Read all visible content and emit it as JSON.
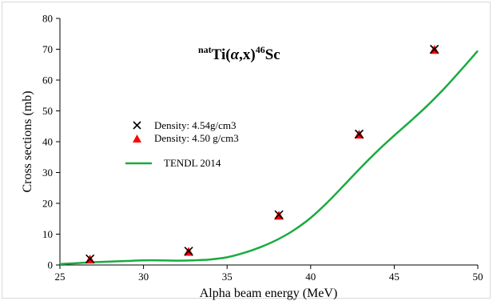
{
  "chart_data": {
    "type": "scatter",
    "title": {
      "pre_sup": "nat",
      "main": "Ti(",
      "alpha": "α",
      "mid": ",x)",
      "post_sup": "46",
      "tail": "Sc"
    },
    "xlabel": "Alpha beam energy (MeV)",
    "ylabel": "Cross sections (mb)",
    "xlim": [
      25,
      50
    ],
    "ylim": [
      0,
      80
    ],
    "xticks": [
      "25",
      "30",
      "35",
      "40",
      "45",
      "50"
    ],
    "yticks": [
      "0",
      "10",
      "20",
      "30",
      "40",
      "50",
      "60",
      "70",
      "80"
    ],
    "grid": false,
    "legend_position": "left-middle",
    "series": [
      {
        "name": "Density: 4.54g/cm3",
        "marker": "x",
        "color": "#000000",
        "x": [
          26.8,
          32.7,
          38.1,
          42.9,
          47.4
        ],
        "y": [
          2.0,
          4.5,
          16.3,
          42.5,
          70.0
        ]
      },
      {
        "name": "Density: 4.50 g/cm3",
        "marker": "triangle",
        "color": "#ff0000",
        "x": [
          26.8,
          32.7,
          38.1,
          42.9,
          47.4
        ],
        "y": [
          1.8,
          4.3,
          16.0,
          42.3,
          69.8
        ]
      },
      {
        "name": "TENDL 2014",
        "marker": "line",
        "color": "#1aab40",
        "x": [
          25,
          26,
          27,
          28,
          29,
          30,
          31,
          32,
          33,
          34,
          35,
          36,
          37,
          38,
          39,
          40,
          41,
          42,
          43,
          44,
          45,
          46,
          47,
          48,
          49,
          50
        ],
        "y": [
          0.3,
          0.6,
          0.9,
          1.1,
          1.3,
          1.5,
          1.5,
          1.4,
          1.5,
          1.8,
          2.5,
          3.9,
          5.8,
          8.2,
          11.3,
          15.3,
          20.3,
          25.9,
          31.6,
          37.0,
          42.0,
          46.8,
          51.8,
          57.3,
          63.3,
          69.5
        ]
      }
    ]
  }
}
